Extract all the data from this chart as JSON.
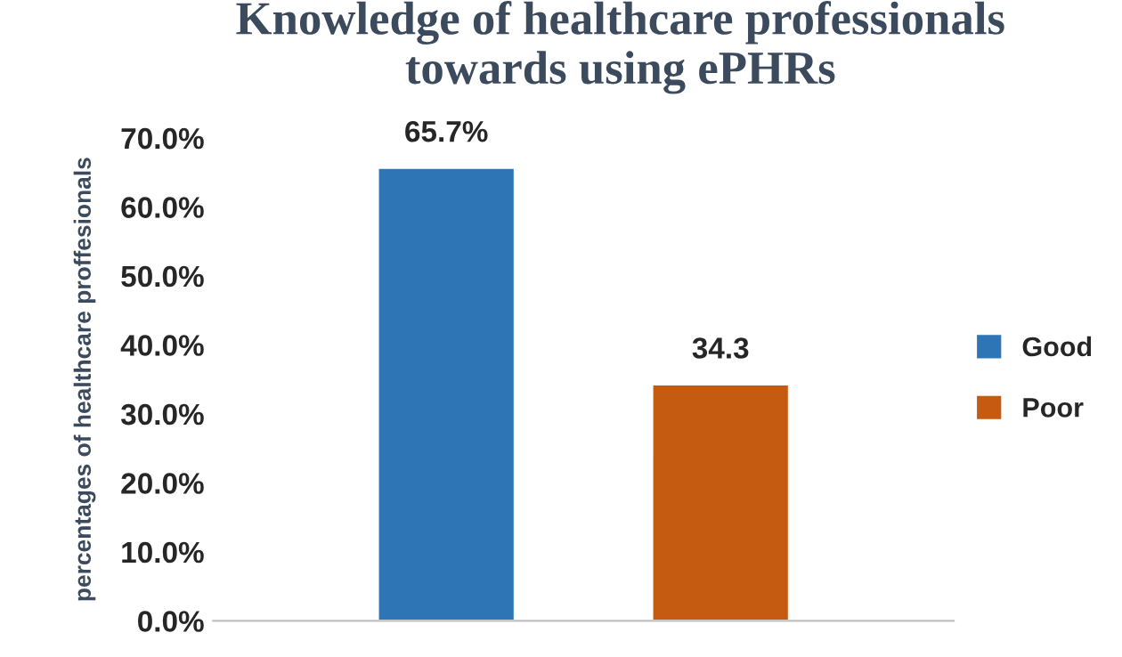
{
  "chart_data": {
    "type": "bar",
    "title": "Knowledge of healthcare professionals\ntowards using ePHRs",
    "ylabel": "percentages of healthcare proffesionals",
    "categories": [
      null,
      null
    ],
    "series": [
      {
        "name": "Good",
        "color": "#2e75b6",
        "values": [
          65.7,
          null
        ],
        "value_labels": [
          "65.7%",
          null
        ]
      },
      {
        "name": "Poor",
        "color": "#c55a11",
        "values": [
          null,
          34.3
        ],
        "value_labels": [
          null,
          "34.3"
        ]
      }
    ],
    "ylim": [
      0,
      70
    ],
    "yticks": [
      {
        "value": 0,
        "label": "0.0%"
      },
      {
        "value": 10,
        "label": "10.0%"
      },
      {
        "value": 20,
        "label": "20.0%"
      },
      {
        "value": 30,
        "label": "30.0%"
      },
      {
        "value": 40,
        "label": "40.0%"
      },
      {
        "value": 50,
        "label": "50.0%"
      },
      {
        "value": 60,
        "label": "60.0%"
      },
      {
        "value": 70,
        "label": "70.0%"
      }
    ],
    "grid": false,
    "legend": "right"
  }
}
